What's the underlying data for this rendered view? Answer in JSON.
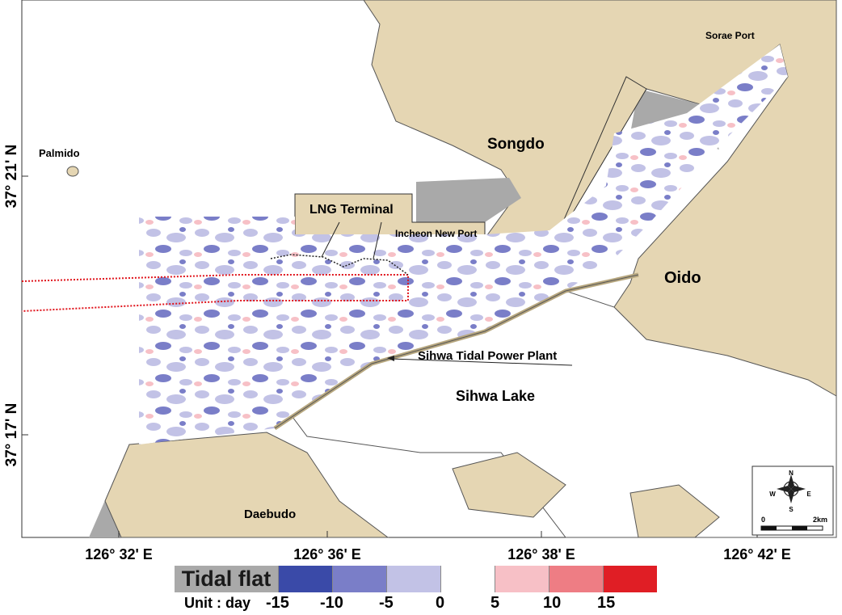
{
  "labels": {
    "palmido": "Palmido",
    "songdo": "Songdo",
    "sorae_port": "Sorae Port",
    "lng_terminal": "LNG Terminal",
    "incheon_new_port": "Incheon New Port",
    "oido": "Oido",
    "sihwa_tidal_power_plant": "Sihwa Tidal Power Plant",
    "sihwa_lake": "Sihwa Lake",
    "daebudo": "Daebudo"
  },
  "lat_ticks": [
    "37° 21' N",
    "37° 17' N"
  ],
  "lon_ticks": [
    "126° 32' E",
    "126° 36' E",
    "126° 38' E",
    "126° 42' E"
  ],
  "compass": {
    "n": "N",
    "s": "S",
    "e": "E",
    "w": "W",
    "scale_start": "0",
    "scale_end": "2km"
  },
  "legend": {
    "tidal_flat": "Tidal flat",
    "unit": "Unit : day",
    "ticks": [
      "-15",
      "-10",
      "-5",
      "0",
      "5",
      "10",
      "15"
    ],
    "colors": [
      "#3a4aa8",
      "#7a7ec8",
      "#c2c2e6",
      "#ffffff",
      "#f7c0c6",
      "#ee7d84",
      "#e01e25"
    ]
  },
  "colors": {
    "land": "#e5d6b3",
    "tidal_flat": "#a9a9a9",
    "water": "#ffffff",
    "route": "#e0141c"
  }
}
